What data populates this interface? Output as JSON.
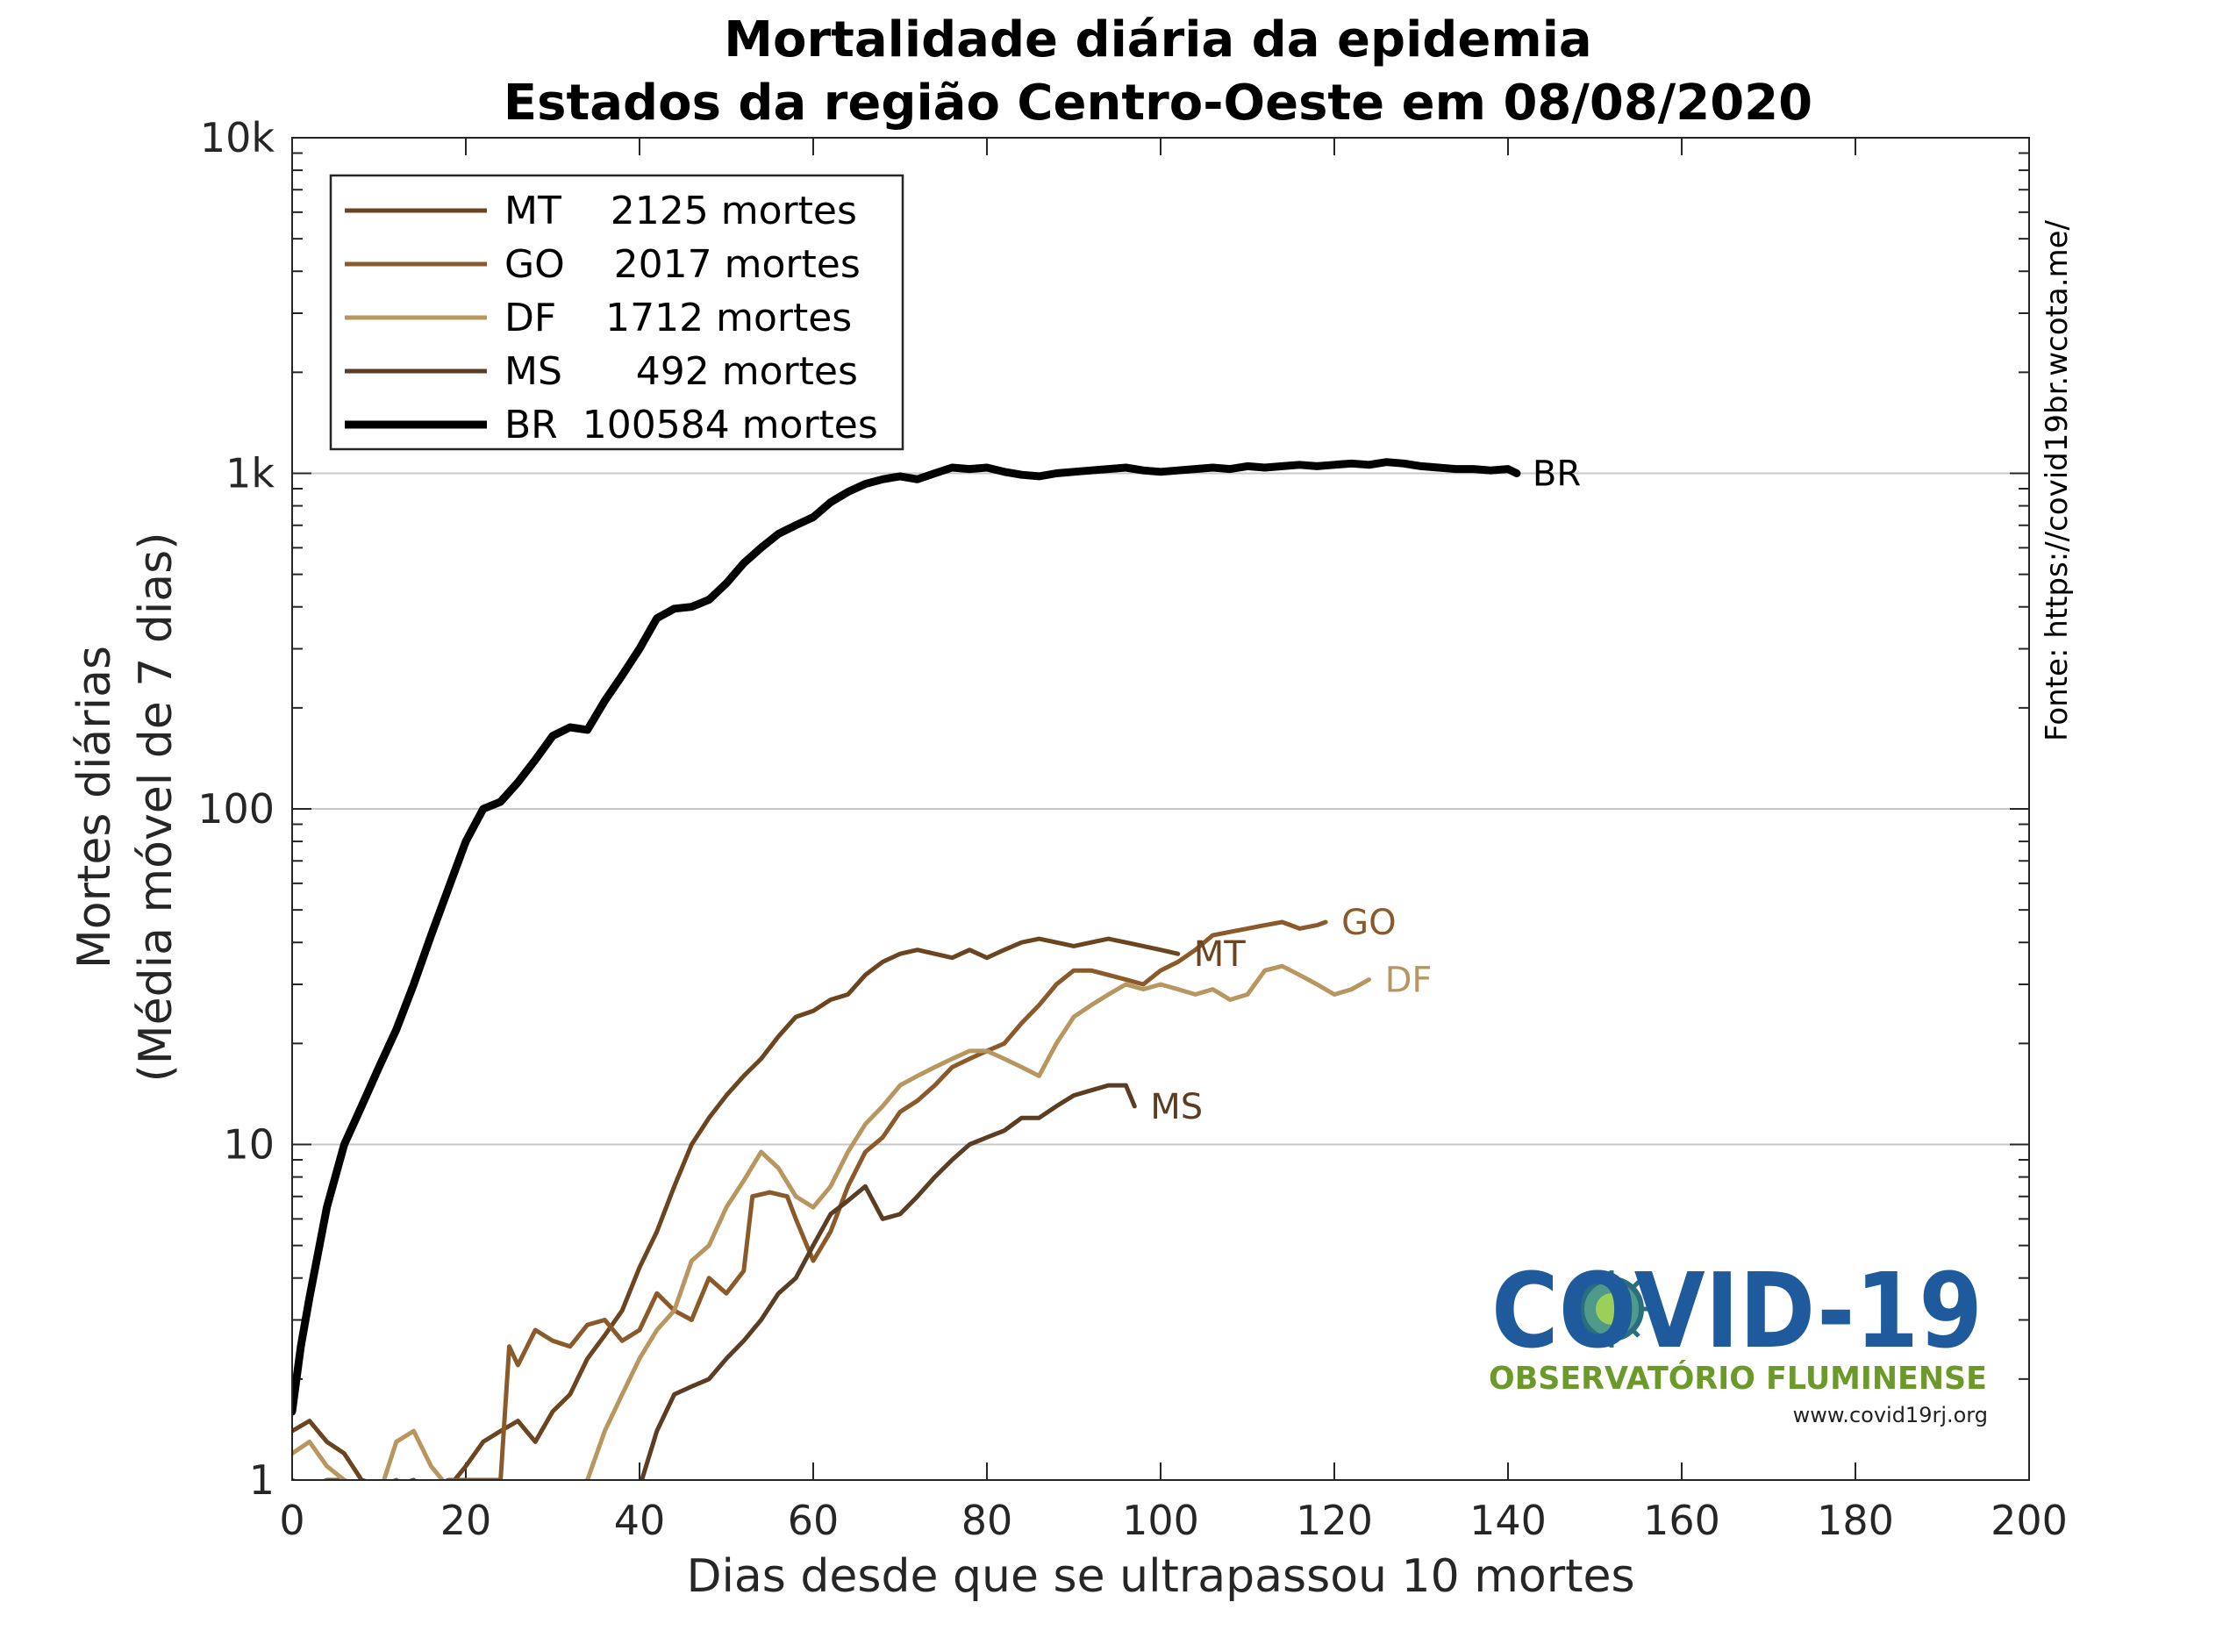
{
  "chart_data": {
    "type": "line",
    "title_line1": "Mortalidade diária da epidemia",
    "title_line2": "Estados da região Centro-Oeste em 08/08/2020",
    "xlabel": "Dias desde que se ultrapassou 10 mortes",
    "ylabel_line1": "Mortes diárias",
    "ylabel_line2": "(Média móvel de 7 dias)",
    "xlim": [
      0,
      200
    ],
    "ylim": [
      1,
      10000
    ],
    "yscale": "log",
    "grid": "horizontal major",
    "legend_position": "top-left",
    "x_ticks": [
      0,
      20,
      40,
      60,
      80,
      100,
      120,
      140,
      160,
      180,
      200
    ],
    "y_ticks": [
      {
        "value": 1,
        "label": "1"
      },
      {
        "value": 10,
        "label": "10"
      },
      {
        "value": 100,
        "label": "100"
      },
      {
        "value": 1000,
        "label": "1k"
      },
      {
        "value": 10000,
        "label": "10k"
      }
    ],
    "series": [
      {
        "name": "MT",
        "legend": "MT    2125 mortes",
        "end_label": "MT",
        "color": "#6b4420",
        "width": 5,
        "points": [
          [
            0,
            1.4
          ],
          [
            2,
            1.5
          ],
          [
            4,
            1.3
          ],
          [
            6,
            1.2
          ],
          [
            8,
            1.0
          ],
          [
            11,
            0.95
          ],
          [
            14,
            1.0
          ],
          [
            16,
            0.9
          ],
          [
            18,
            0.95
          ],
          [
            20,
            1.1
          ],
          [
            22,
            1.3
          ],
          [
            24,
            1.4
          ],
          [
            26,
            1.5
          ],
          [
            28,
            1.3
          ],
          [
            30,
            1.6
          ],
          [
            32,
            1.8
          ],
          [
            34,
            2.3
          ],
          [
            36,
            2.7
          ],
          [
            38,
            3.2
          ],
          [
            40,
            4.3
          ],
          [
            42,
            5.5
          ],
          [
            44,
            7.5
          ],
          [
            46,
            10
          ],
          [
            48,
            12
          ],
          [
            50,
            14
          ],
          [
            52,
            16
          ],
          [
            54,
            18
          ],
          [
            56,
            21
          ],
          [
            58,
            24
          ],
          [
            60,
            25
          ],
          [
            62,
            27
          ],
          [
            64,
            28
          ],
          [
            66,
            32
          ],
          [
            68,
            35
          ],
          [
            70,
            37
          ],
          [
            72,
            38
          ],
          [
            74,
            37
          ],
          [
            76,
            36
          ],
          [
            78,
            38
          ],
          [
            80,
            36
          ],
          [
            82,
            38
          ],
          [
            84,
            40
          ],
          [
            86,
            41
          ],
          [
            88,
            40
          ],
          [
            90,
            39
          ],
          [
            92,
            40
          ],
          [
            94,
            41
          ],
          [
            96,
            40
          ],
          [
            98,
            39
          ],
          [
            100,
            38
          ],
          [
            102,
            37
          ]
        ]
      },
      {
        "name": "GO",
        "legend": "GO    2017 mortes",
        "end_label": "GO",
        "color": "#8b5a2b",
        "width": 5,
        "points": [
          [
            0,
            1.0
          ],
          [
            2,
            0.95
          ],
          [
            4,
            1.0
          ],
          [
            6,
            1.0
          ],
          [
            8,
            0.9
          ],
          [
            10,
            0.95
          ],
          [
            12,
            1.0
          ],
          [
            14,
            0.9
          ],
          [
            16,
            0.95
          ],
          [
            18,
            1.0
          ],
          [
            20,
            1.0
          ],
          [
            22,
            1.0
          ],
          [
            24,
            1.0
          ],
          [
            25,
            2.5
          ],
          [
            26,
            2.2
          ],
          [
            28,
            2.8
          ],
          [
            30,
            2.6
          ],
          [
            32,
            2.5
          ],
          [
            34,
            2.9
          ],
          [
            36,
            3.0
          ],
          [
            38,
            2.6
          ],
          [
            40,
            2.8
          ],
          [
            42,
            3.6
          ],
          [
            44,
            3.2
          ],
          [
            46,
            3.0
          ],
          [
            48,
            4.0
          ],
          [
            50,
            3.6
          ],
          [
            52,
            4.2
          ],
          [
            53,
            7.0
          ],
          [
            55,
            7.2
          ],
          [
            57,
            7.0
          ],
          [
            58,
            6.0
          ],
          [
            60,
            4.5
          ],
          [
            62,
            5.5
          ],
          [
            64,
            7.5
          ],
          [
            66,
            9.5
          ],
          [
            68,
            10.5
          ],
          [
            70,
            12.5
          ],
          [
            72,
            13.5
          ],
          [
            74,
            15
          ],
          [
            76,
            17
          ],
          [
            78,
            18
          ],
          [
            80,
            19
          ],
          [
            82,
            20
          ],
          [
            84,
            23
          ],
          [
            86,
            26
          ],
          [
            88,
            30
          ],
          [
            90,
            33
          ],
          [
            92,
            33
          ],
          [
            94,
            32
          ],
          [
            96,
            31
          ],
          [
            98,
            30
          ],
          [
            100,
            33
          ],
          [
            102,
            35
          ],
          [
            104,
            38
          ],
          [
            106,
            42
          ],
          [
            108,
            43
          ],
          [
            110,
            44
          ],
          [
            112,
            45
          ],
          [
            114,
            46
          ],
          [
            116,
            44
          ],
          [
            118,
            45
          ],
          [
            119,
            46
          ]
        ]
      },
      {
        "name": "DF",
        "legend": "DF    1712 mortes",
        "end_label": "DF",
        "color": "#b89660",
        "width": 5,
        "points": [
          [
            0,
            1.2
          ],
          [
            2,
            1.3
          ],
          [
            4,
            1.1
          ],
          [
            6,
            1.0
          ],
          [
            8,
            0.95
          ],
          [
            10,
            0.9
          ],
          [
            12,
            1.3
          ],
          [
            14,
            1.4
          ],
          [
            16,
            1.1
          ],
          [
            18,
            0.95
          ],
          [
            20,
            0.9
          ],
          [
            24,
            0.9
          ],
          [
            30,
            0.9
          ],
          [
            34,
            1.0
          ],
          [
            36,
            1.4
          ],
          [
            38,
            1.8
          ],
          [
            40,
            2.3
          ],
          [
            42,
            2.8
          ],
          [
            44,
            3.2
          ],
          [
            46,
            4.5
          ],
          [
            48,
            5.0
          ],
          [
            50,
            6.5
          ],
          [
            52,
            7.8
          ],
          [
            54,
            9.5
          ],
          [
            56,
            8.5
          ],
          [
            58,
            7.0
          ],
          [
            60,
            6.5
          ],
          [
            62,
            7.5
          ],
          [
            64,
            9.5
          ],
          [
            66,
            11.5
          ],
          [
            68,
            13
          ],
          [
            70,
            15
          ],
          [
            72,
            16
          ],
          [
            74,
            17
          ],
          [
            76,
            18
          ],
          [
            78,
            19
          ],
          [
            80,
            19
          ],
          [
            82,
            18
          ],
          [
            84,
            17
          ],
          [
            86,
            16
          ],
          [
            88,
            20
          ],
          [
            90,
            24
          ],
          [
            92,
            26
          ],
          [
            94,
            28
          ],
          [
            96,
            30
          ],
          [
            98,
            29
          ],
          [
            100,
            30
          ],
          [
            102,
            29
          ],
          [
            104,
            28
          ],
          [
            106,
            29
          ],
          [
            108,
            27
          ],
          [
            110,
            28
          ],
          [
            112,
            33
          ],
          [
            114,
            34
          ],
          [
            116,
            32
          ],
          [
            118,
            30
          ],
          [
            120,
            28
          ],
          [
            122,
            29
          ],
          [
            124,
            31
          ]
        ]
      },
      {
        "name": "MS",
        "legend": "MS      492 mortes",
        "end_label": "MS",
        "color": "#5a3d22",
        "width": 5,
        "points": [
          [
            0,
            0.9
          ],
          [
            10,
            0.9
          ],
          [
            20,
            0.9
          ],
          [
            30,
            0.9
          ],
          [
            40,
            0.95
          ],
          [
            42,
            1.4
          ],
          [
            44,
            1.8
          ],
          [
            46,
            1.9
          ],
          [
            48,
            2.0
          ],
          [
            50,
            2.3
          ],
          [
            52,
            2.6
          ],
          [
            54,
            3.0
          ],
          [
            56,
            3.6
          ],
          [
            58,
            4.0
          ],
          [
            60,
            5.0
          ],
          [
            62,
            6.2
          ],
          [
            64,
            6.8
          ],
          [
            66,
            7.5
          ],
          [
            68,
            6.0
          ],
          [
            70,
            6.2
          ],
          [
            72,
            7.0
          ],
          [
            74,
            8.0
          ],
          [
            76,
            9.0
          ],
          [
            78,
            10
          ],
          [
            80,
            10.5
          ],
          [
            82,
            11
          ],
          [
            84,
            12
          ],
          [
            86,
            12
          ],
          [
            88,
            13
          ],
          [
            90,
            14
          ],
          [
            92,
            14.5
          ],
          [
            94,
            15
          ],
          [
            96,
            15
          ],
          [
            97,
            13
          ]
        ]
      },
      {
        "name": "BR",
        "legend": "BR  100584 mortes",
        "end_label": "BR",
        "color": "#000000",
        "width": 9,
        "points": [
          [
            0,
            1.6
          ],
          [
            1,
            2.5
          ],
          [
            2,
            3.5
          ],
          [
            4,
            6.5
          ],
          [
            6,
            10
          ],
          [
            8,
            13
          ],
          [
            10,
            17
          ],
          [
            12,
            22
          ],
          [
            14,
            30
          ],
          [
            16,
            42
          ],
          [
            18,
            58
          ],
          [
            20,
            80
          ],
          [
            22,
            100
          ],
          [
            24,
            105
          ],
          [
            26,
            120
          ],
          [
            28,
            140
          ],
          [
            30,
            165
          ],
          [
            32,
            175
          ],
          [
            34,
            172
          ],
          [
            36,
            210
          ],
          [
            38,
            250
          ],
          [
            40,
            300
          ],
          [
            42,
            370
          ],
          [
            44,
            395
          ],
          [
            46,
            400
          ],
          [
            48,
            420
          ],
          [
            50,
            470
          ],
          [
            52,
            540
          ],
          [
            54,
            600
          ],
          [
            56,
            660
          ],
          [
            58,
            700
          ],
          [
            60,
            740
          ],
          [
            62,
            820
          ],
          [
            64,
            880
          ],
          [
            66,
            930
          ],
          [
            68,
            960
          ],
          [
            70,
            980
          ],
          [
            72,
            960
          ],
          [
            74,
            1000
          ],
          [
            76,
            1040
          ],
          [
            78,
            1030
          ],
          [
            80,
            1040
          ],
          [
            82,
            1010
          ],
          [
            84,
            990
          ],
          [
            86,
            980
          ],
          [
            88,
            1000
          ],
          [
            90,
            1010
          ],
          [
            92,
            1020
          ],
          [
            94,
            1030
          ],
          [
            96,
            1040
          ],
          [
            98,
            1020
          ],
          [
            100,
            1010
          ],
          [
            102,
            1020
          ],
          [
            104,
            1030
          ],
          [
            106,
            1040
          ],
          [
            108,
            1030
          ],
          [
            110,
            1050
          ],
          [
            112,
            1040
          ],
          [
            114,
            1050
          ],
          [
            116,
            1060
          ],
          [
            118,
            1050
          ],
          [
            120,
            1060
          ],
          [
            122,
            1070
          ],
          [
            124,
            1060
          ],
          [
            126,
            1080
          ],
          [
            128,
            1070
          ],
          [
            130,
            1050
          ],
          [
            132,
            1040
          ],
          [
            134,
            1030
          ],
          [
            136,
            1030
          ],
          [
            138,
            1020
          ],
          [
            140,
            1030
          ],
          [
            141,
            1000
          ]
        ]
      }
    ]
  },
  "source_text": "Fonte: https://covid19br.wcota.me/",
  "logo": {
    "title": "COVID-19",
    "subtitle": "OBSERVATÓRIO FLUMINENSE",
    "url": "www.covid19rj.org"
  }
}
